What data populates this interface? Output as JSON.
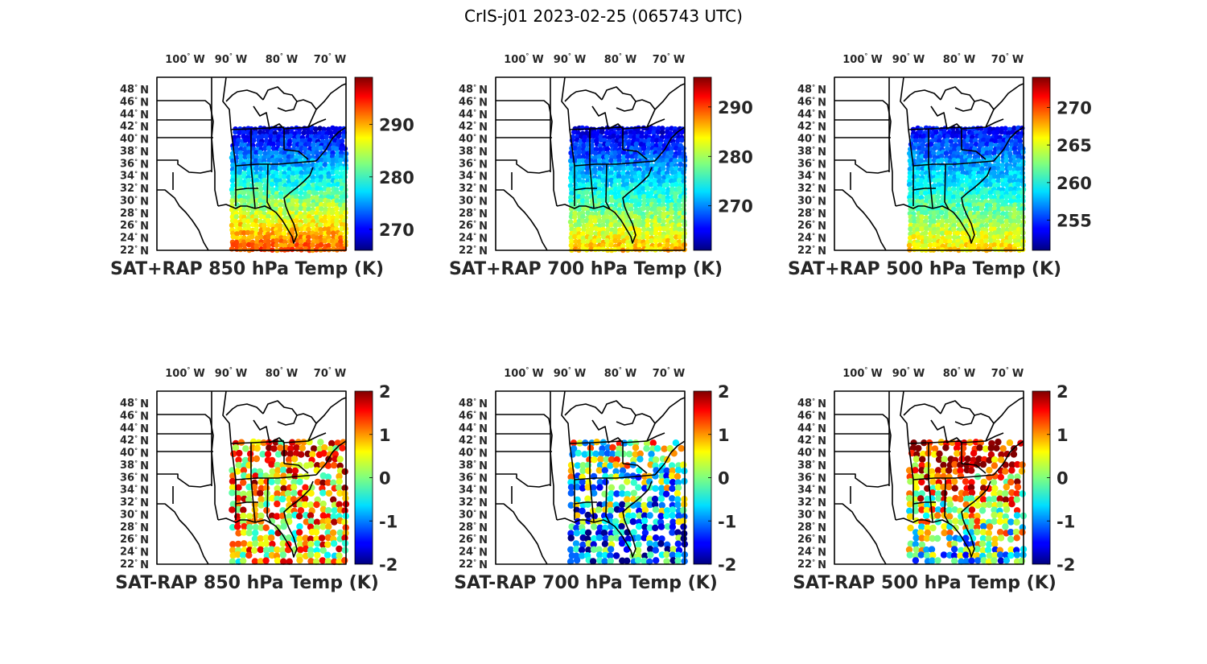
{
  "figure": {
    "title": "CrIS-j01 2023-02-25 (065743 UTC)"
  },
  "axes": {
    "lon_labels": [
      "100",
      "90",
      "80",
      "70"
    ],
    "lon_hemisphere": "W",
    "lat_labels": [
      "48",
      "46",
      "44",
      "42",
      "40",
      "38",
      "36",
      "34",
      "32",
      "30",
      "28",
      "26",
      "24",
      "22"
    ],
    "lat_hemisphere": "N",
    "degree_symbol": "°"
  },
  "panels": [
    {
      "id": "p1",
      "title": "SAT+RAP 850 hPa Temp (K)",
      "kind": "temp",
      "colorbar": {
        "min": 266,
        "max": 299,
        "ticks": [
          "270",
          "280",
          "290"
        ],
        "tick_values": [
          270,
          280,
          290
        ]
      },
      "field": {
        "south_mean": 292,
        "north_mean": 269,
        "noise": 2.5
      }
    },
    {
      "id": "p2",
      "title": "SAT+RAP 700 hPa Temp (K)",
      "kind": "temp",
      "colorbar": {
        "min": 261,
        "max": 296,
        "ticks": [
          "270",
          "280",
          "290"
        ],
        "tick_values": [
          270,
          280,
          290
        ]
      },
      "field": {
        "south_mean": 285,
        "north_mean": 264,
        "noise": 2.5
      }
    },
    {
      "id": "p3",
      "title": "SAT+RAP 500 hPa Temp (K)",
      "kind": "temp",
      "colorbar": {
        "min": 251,
        "max": 274,
        "ticks": [
          "255",
          "260",
          "265",
          "270"
        ],
        "tick_values": [
          255,
          260,
          265,
          270
        ]
      },
      "field": {
        "south_mean": 266,
        "north_mean": 254,
        "noise": 1.6
      }
    },
    {
      "id": "p4",
      "title": "SAT-RAP 850 hPa Temp (K)",
      "kind": "diff",
      "colorbar": {
        "min": -2,
        "max": 2,
        "ticks": [
          "-2",
          "-1",
          "0",
          "1",
          "2"
        ],
        "tick_values": [
          -2,
          -1,
          0,
          1,
          2
        ]
      },
      "field": {
        "south_mean": 0.5,
        "north_mean": 1.0,
        "noise": 1.2
      }
    },
    {
      "id": "p5",
      "title": "SAT-RAP 700 hPa Temp (K)",
      "kind": "diff",
      "colorbar": {
        "min": -2,
        "max": 2,
        "ticks": [
          "-2",
          "-1",
          "0",
          "1",
          "2"
        ],
        "tick_values": [
          -2,
          -1,
          0,
          1,
          2
        ]
      },
      "field": {
        "south_mean": -1.2,
        "north_mean": 0.2,
        "noise": 1.4
      }
    },
    {
      "id": "p6",
      "title": "SAT-RAP 500 hPa Temp (K)",
      "kind": "diff",
      "colorbar": {
        "min": -2,
        "max": 2,
        "ticks": [
          "-2",
          "-1",
          "0",
          "1",
          "2"
        ],
        "tick_values": [
          -2,
          -1,
          0,
          1,
          2
        ]
      },
      "field": {
        "south_mean": -0.6,
        "north_mean": 1.8,
        "noise": 1.3
      }
    }
  ],
  "colors": {
    "land_outline": "#000000",
    "background": "#ffffff",
    "text": "#262626"
  }
}
